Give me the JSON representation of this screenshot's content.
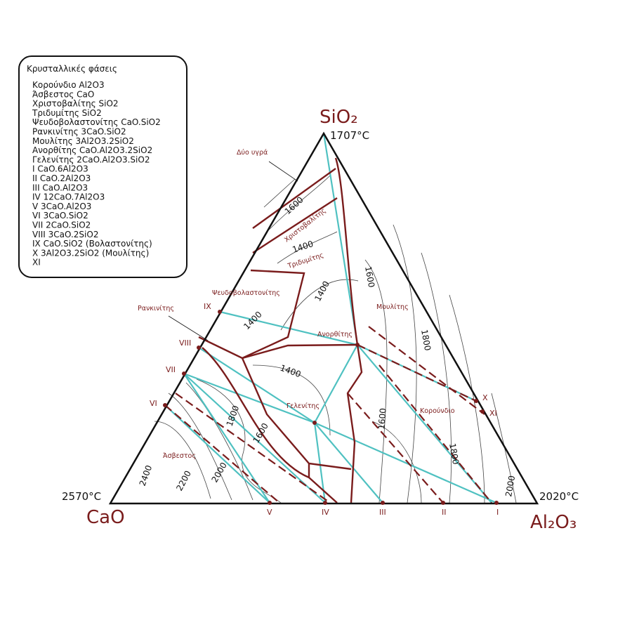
{
  "legend": {
    "title": "Κρυσταλλικές φάσεις",
    "items": [
      "Κορούνδιο  Al2O3",
      "Άσβεστος  CaO",
      "Χριστοβαλίτης SiO2",
      "Τριδυμίτης  SiO2",
      "Ψευδοβολαστονίτης CaO.SiO2",
      "Ρανκινίτης 3CaO.SiO2",
      "Μουλίτης  3Al2O3.2SiO2",
      "Ανορθίτης  CaO.Al2O3.2SiO2",
      "Γελενίτης  2CaO.Al2O3.SiO2",
      "I  CaO.6Al2O3",
      "II  CaO.2Al2O3",
      "III  CaO.Al2O3",
      "IV  12CaO.7Al2O3",
      "V  3CaO.Al2O3",
      "VI  3CaO.SiO2",
      "VII 2CaO.SiO2",
      "VIII 3CaO.2SiO2",
      "IX  CaO.SiO2 (Βολαστονίτης)",
      "X  3Al2O3.2SiO2 (Μουλίτης)",
      "XI"
    ]
  },
  "vertices": {
    "top": {
      "label": "SiO₂",
      "temperature": "1707°C"
    },
    "left": {
      "label": "CaO",
      "temperature": "2570°C"
    },
    "right": {
      "label": "Al₂O₃",
      "temperature": "2020°C"
    }
  },
  "fields": [
    "Δύο υγρά",
    "Χριστοβαλίτης",
    "Τριδυμίτης",
    "Ψευδοβολαστονίτης",
    "Ρανκινίτης",
    "Μουλίτης",
    "Ανορθίτης",
    "Γελενίτης",
    "Κορούνδιο",
    "Άσβεστος"
  ],
  "compounds": [
    "IX",
    "VIII",
    "VII",
    "VI",
    "X",
    "XI",
    "V",
    "IV",
    "III",
    "II",
    "I"
  ],
  "isotherms": [
    "1600",
    "1400",
    "1400",
    "1600",
    "1800",
    "1400",
    "1400",
    "1800",
    "1600",
    "1600",
    "1800",
    "2400",
    "2200",
    "2000",
    "2000"
  ]
}
